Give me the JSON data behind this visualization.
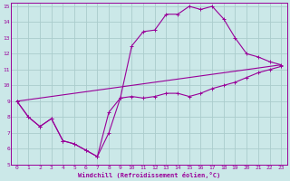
{
  "xlabel": "Windchill (Refroidissement éolien,°C)",
  "bg_color": "#cbe8e8",
  "grid_color": "#aacccc",
  "line_color": "#990099",
  "xlim": [
    -0.5,
    23.5
  ],
  "ylim": [
    5,
    15.2
  ],
  "xticks": [
    0,
    1,
    2,
    3,
    4,
    5,
    6,
    7,
    8,
    9,
    10,
    11,
    12,
    13,
    14,
    15,
    16,
    17,
    18,
    19,
    20,
    21,
    22,
    23
  ],
  "yticks": [
    5,
    6,
    7,
    8,
    9,
    10,
    11,
    12,
    13,
    14,
    15
  ],
  "line1_x": [
    0,
    1,
    2,
    3,
    4,
    5,
    6,
    7,
    8,
    9,
    10,
    11,
    12,
    13,
    14,
    15,
    16,
    17,
    18,
    19,
    20,
    21,
    22,
    23
  ],
  "line1_y": [
    9.0,
    8.0,
    7.4,
    7.9,
    6.5,
    6.3,
    5.9,
    5.5,
    7.0,
    9.2,
    9.3,
    9.2,
    9.3,
    9.5,
    9.5,
    9.3,
    9.5,
    9.8,
    10.0,
    10.2,
    10.5,
    10.8,
    11.0,
    11.2
  ],
  "line2_x": [
    0,
    1,
    2,
    3,
    4,
    5,
    6,
    7,
    8,
    9,
    10,
    11,
    12,
    13,
    14,
    15,
    16,
    17,
    18,
    19,
    20,
    21,
    22,
    23
  ],
  "line2_y": [
    9.0,
    8.0,
    7.4,
    7.9,
    6.5,
    6.3,
    5.9,
    5.5,
    8.3,
    9.2,
    12.5,
    13.4,
    13.5,
    14.5,
    14.5,
    15.0,
    14.8,
    15.0,
    14.2,
    13.0,
    12.0,
    11.8,
    11.5,
    11.3
  ],
  "line3_x": [
    0,
    23
  ],
  "line3_y": [
    9.0,
    11.3
  ]
}
